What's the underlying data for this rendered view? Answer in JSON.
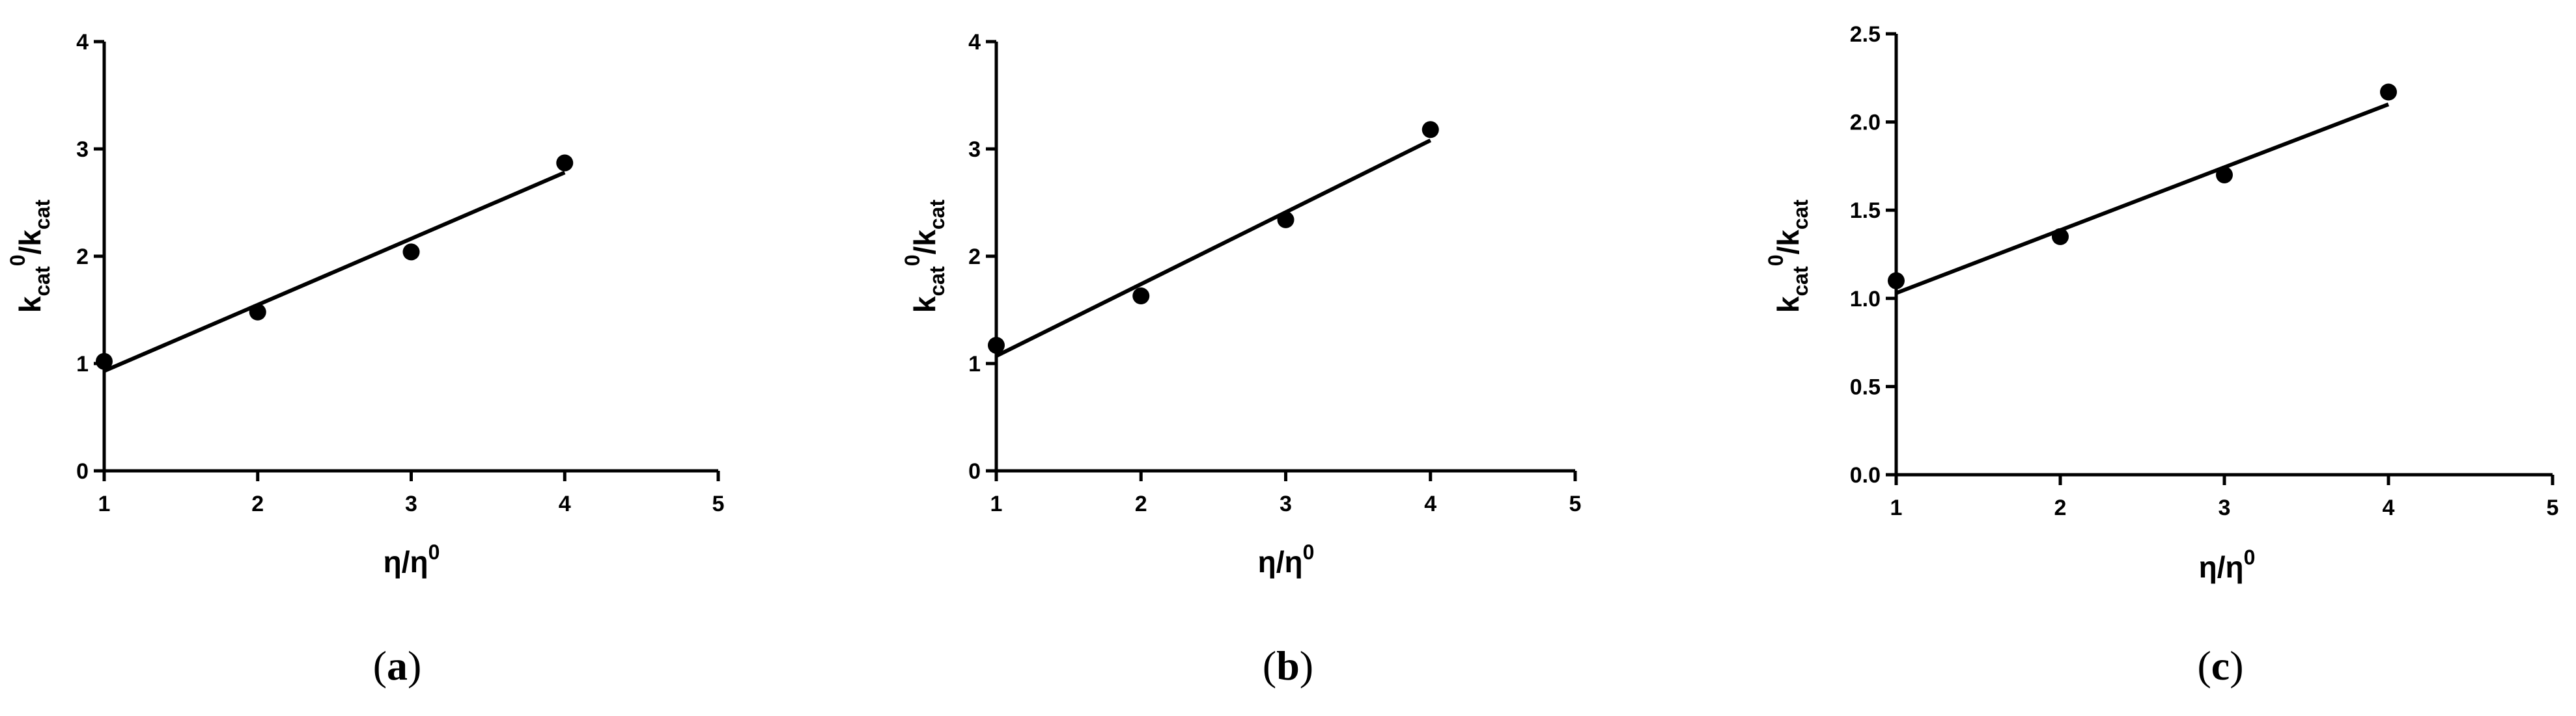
{
  "chart_data": [
    {
      "type": "scatter",
      "panel_label": "a",
      "xlabel": {
        "base": "η/η",
        "sup": "0"
      },
      "ylabel": {
        "k1": "k",
        "sub1": "cat",
        "sup1": "0",
        "slash": "/k",
        "sub2": "cat"
      },
      "xlim": [
        1,
        5
      ],
      "ylim": [
        0,
        4
      ],
      "xticks": [
        "1",
        "2",
        "3",
        "4",
        "5"
      ],
      "yticks": [
        "0",
        "1",
        "2",
        "3",
        "4"
      ],
      "ytick_values": [
        0,
        1,
        2,
        3,
        4
      ],
      "points": {
        "x": [
          1,
          2,
          3,
          4
        ],
        "y": [
          1.02,
          1.48,
          2.04,
          2.87
        ]
      },
      "fit_line": {
        "x": [
          1,
          4
        ],
        "y": [
          0.93,
          2.78
        ]
      },
      "grid": false,
      "legend": "none"
    },
    {
      "type": "scatter",
      "panel_label": "b",
      "xlabel": {
        "base": "η/η",
        "sup": "0"
      },
      "ylabel": {
        "k1": "k",
        "sub1": "cat",
        "sup1": "0",
        "slash": "/k",
        "sub2": "cat"
      },
      "xlim": [
        1,
        5
      ],
      "ylim": [
        0,
        4
      ],
      "xticks": [
        "1",
        "2",
        "3",
        "4",
        "5"
      ],
      "yticks": [
        "0",
        "1",
        "2",
        "3",
        "4"
      ],
      "ytick_values": [
        0,
        1,
        2,
        3,
        4
      ],
      "points": {
        "x": [
          1,
          2,
          3,
          4
        ],
        "y": [
          1.17,
          1.63,
          2.34,
          3.18
        ]
      },
      "fit_line": {
        "x": [
          1,
          4
        ],
        "y": [
          1.07,
          3.08
        ]
      },
      "grid": false,
      "legend": "none"
    },
    {
      "type": "scatter",
      "panel_label": "c",
      "xlabel": {
        "base": "η/η",
        "sup": "0"
      },
      "ylabel": {
        "k1": "k",
        "sub1": "cat",
        "sup1": "0",
        "slash": "/k",
        "sub2": "cat"
      },
      "xlim": [
        1,
        5
      ],
      "ylim": [
        0,
        2.5
      ],
      "xticks": [
        "1",
        "2",
        "3",
        "4",
        "5"
      ],
      "yticks": [
        "0.0",
        "0.5",
        "1.0",
        "1.5",
        "2.0",
        "2.5"
      ],
      "ytick_values": [
        0,
        0.5,
        1.0,
        1.5,
        2.0,
        2.5
      ],
      "points": {
        "x": [
          1,
          2,
          3,
          4
        ],
        "y": [
          1.1,
          1.35,
          1.7,
          2.17
        ]
      },
      "fit_line": {
        "x": [
          1,
          4
        ],
        "y": [
          1.03,
          2.1
        ]
      },
      "grid": false,
      "legend": "none"
    }
  ],
  "colors": {
    "ink": "#000000",
    "background": "#ffffff"
  }
}
